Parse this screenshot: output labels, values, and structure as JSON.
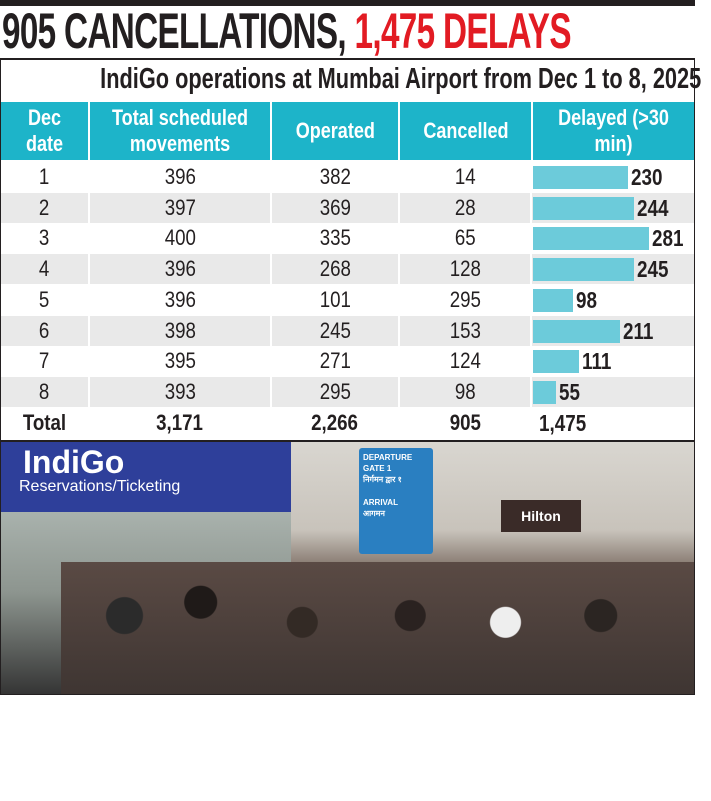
{
  "headline": {
    "part1": "905 CANCELLATIONS, ",
    "part2": "1,475 DELAYS"
  },
  "chart_data": {
    "type": "table",
    "title": "IndiGo operations at Mumbai Airport from Dec 1 to 8, 2025",
    "columns": [
      "Dec date",
      "Total scheduled movements",
      "Operated",
      "Cancelled",
      "Delayed (>30 min)"
    ],
    "rows": [
      {
        "date": "1",
        "total": 396,
        "operated": 382,
        "cancelled": 14,
        "delayed": 230
      },
      {
        "date": "2",
        "total": 397,
        "operated": 369,
        "cancelled": 28,
        "delayed": 244
      },
      {
        "date": "3",
        "total": 400,
        "operated": 335,
        "cancelled": 65,
        "delayed": 281
      },
      {
        "date": "4",
        "total": 396,
        "operated": 268,
        "cancelled": 128,
        "delayed": 245
      },
      {
        "date": "5",
        "total": 396,
        "operated": 101,
        "cancelled": 295,
        "delayed": 98
      },
      {
        "date": "6",
        "total": 398,
        "operated": 245,
        "cancelled": 153,
        "delayed": 211
      },
      {
        "date": "7",
        "total": 395,
        "operated": 271,
        "cancelled": 124,
        "delayed": 111
      },
      {
        "date": "8",
        "total": 393,
        "operated": 295,
        "cancelled": 98,
        "delayed": 55
      }
    ],
    "totals": {
      "label": "Total",
      "total": "3,171",
      "operated": "2,266",
      "cancelled": "905",
      "delayed": "1,475"
    },
    "bar_series": "delayed",
    "colors": {
      "header": "#1db4c9",
      "bar": "#6ccbda",
      "headline_red": "#e21b23"
    }
  },
  "photo": {
    "booth_brand": "IndiGo",
    "booth_sign": "Reservations/Ticketing",
    "direction_sign": [
      "DEPARTURE",
      "GATE 1",
      "निर्गमन द्वार १",
      "ARRIVAL",
      "आगमन"
    ],
    "hotel_sign": "Hilton"
  }
}
